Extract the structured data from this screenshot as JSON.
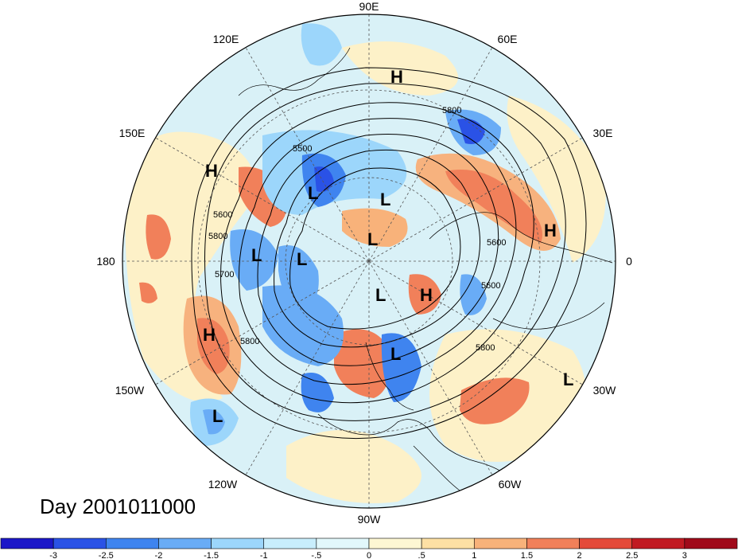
{
  "title": "Day 2001011000",
  "lon_labels": [
    "90E",
    "60E",
    "30E",
    "0",
    "30W",
    "60W",
    "90W",
    "120W",
    "150W",
    "180",
    "150E",
    "120E"
  ],
  "contour_labels": [
    "5800",
    "5500",
    "5600",
    "5800",
    "5700",
    "5600",
    "5800",
    "5600",
    "5800"
  ],
  "pressure_centers": [
    {
      "type": "H",
      "label": "H"
    },
    {
      "type": "H",
      "label": "H"
    },
    {
      "type": "H",
      "label": "H"
    },
    {
      "type": "H",
      "label": "H"
    },
    {
      "type": "H",
      "label": "H"
    },
    {
      "type": "L",
      "label": "L"
    },
    {
      "type": "L",
      "label": "L"
    },
    {
      "type": "L",
      "label": "L"
    },
    {
      "type": "L",
      "label": "L"
    },
    {
      "type": "L",
      "label": "L"
    },
    {
      "type": "L",
      "label": "L"
    },
    {
      "type": "L",
      "label": "L"
    },
    {
      "type": "L",
      "label": "L"
    },
    {
      "type": "L",
      "label": "L"
    }
  ],
  "colorbar": {
    "colors": [
      "#1c17c8",
      "#2a52e6",
      "#3f84ef",
      "#69acf6",
      "#9cd6fb",
      "#c8eefc",
      "#e2f8fb",
      "#fdf7d3",
      "#fde0a4",
      "#f8b27a",
      "#f1805a",
      "#e44a3a",
      "#c11a22",
      "#a00a1a"
    ],
    "tick_labels": [
      "-3",
      "-2.5",
      "-2",
      "-1.5",
      "-1",
      "-.5",
      "0",
      ".5",
      "1",
      "1.5",
      "2",
      "2.5",
      "3"
    ]
  }
}
